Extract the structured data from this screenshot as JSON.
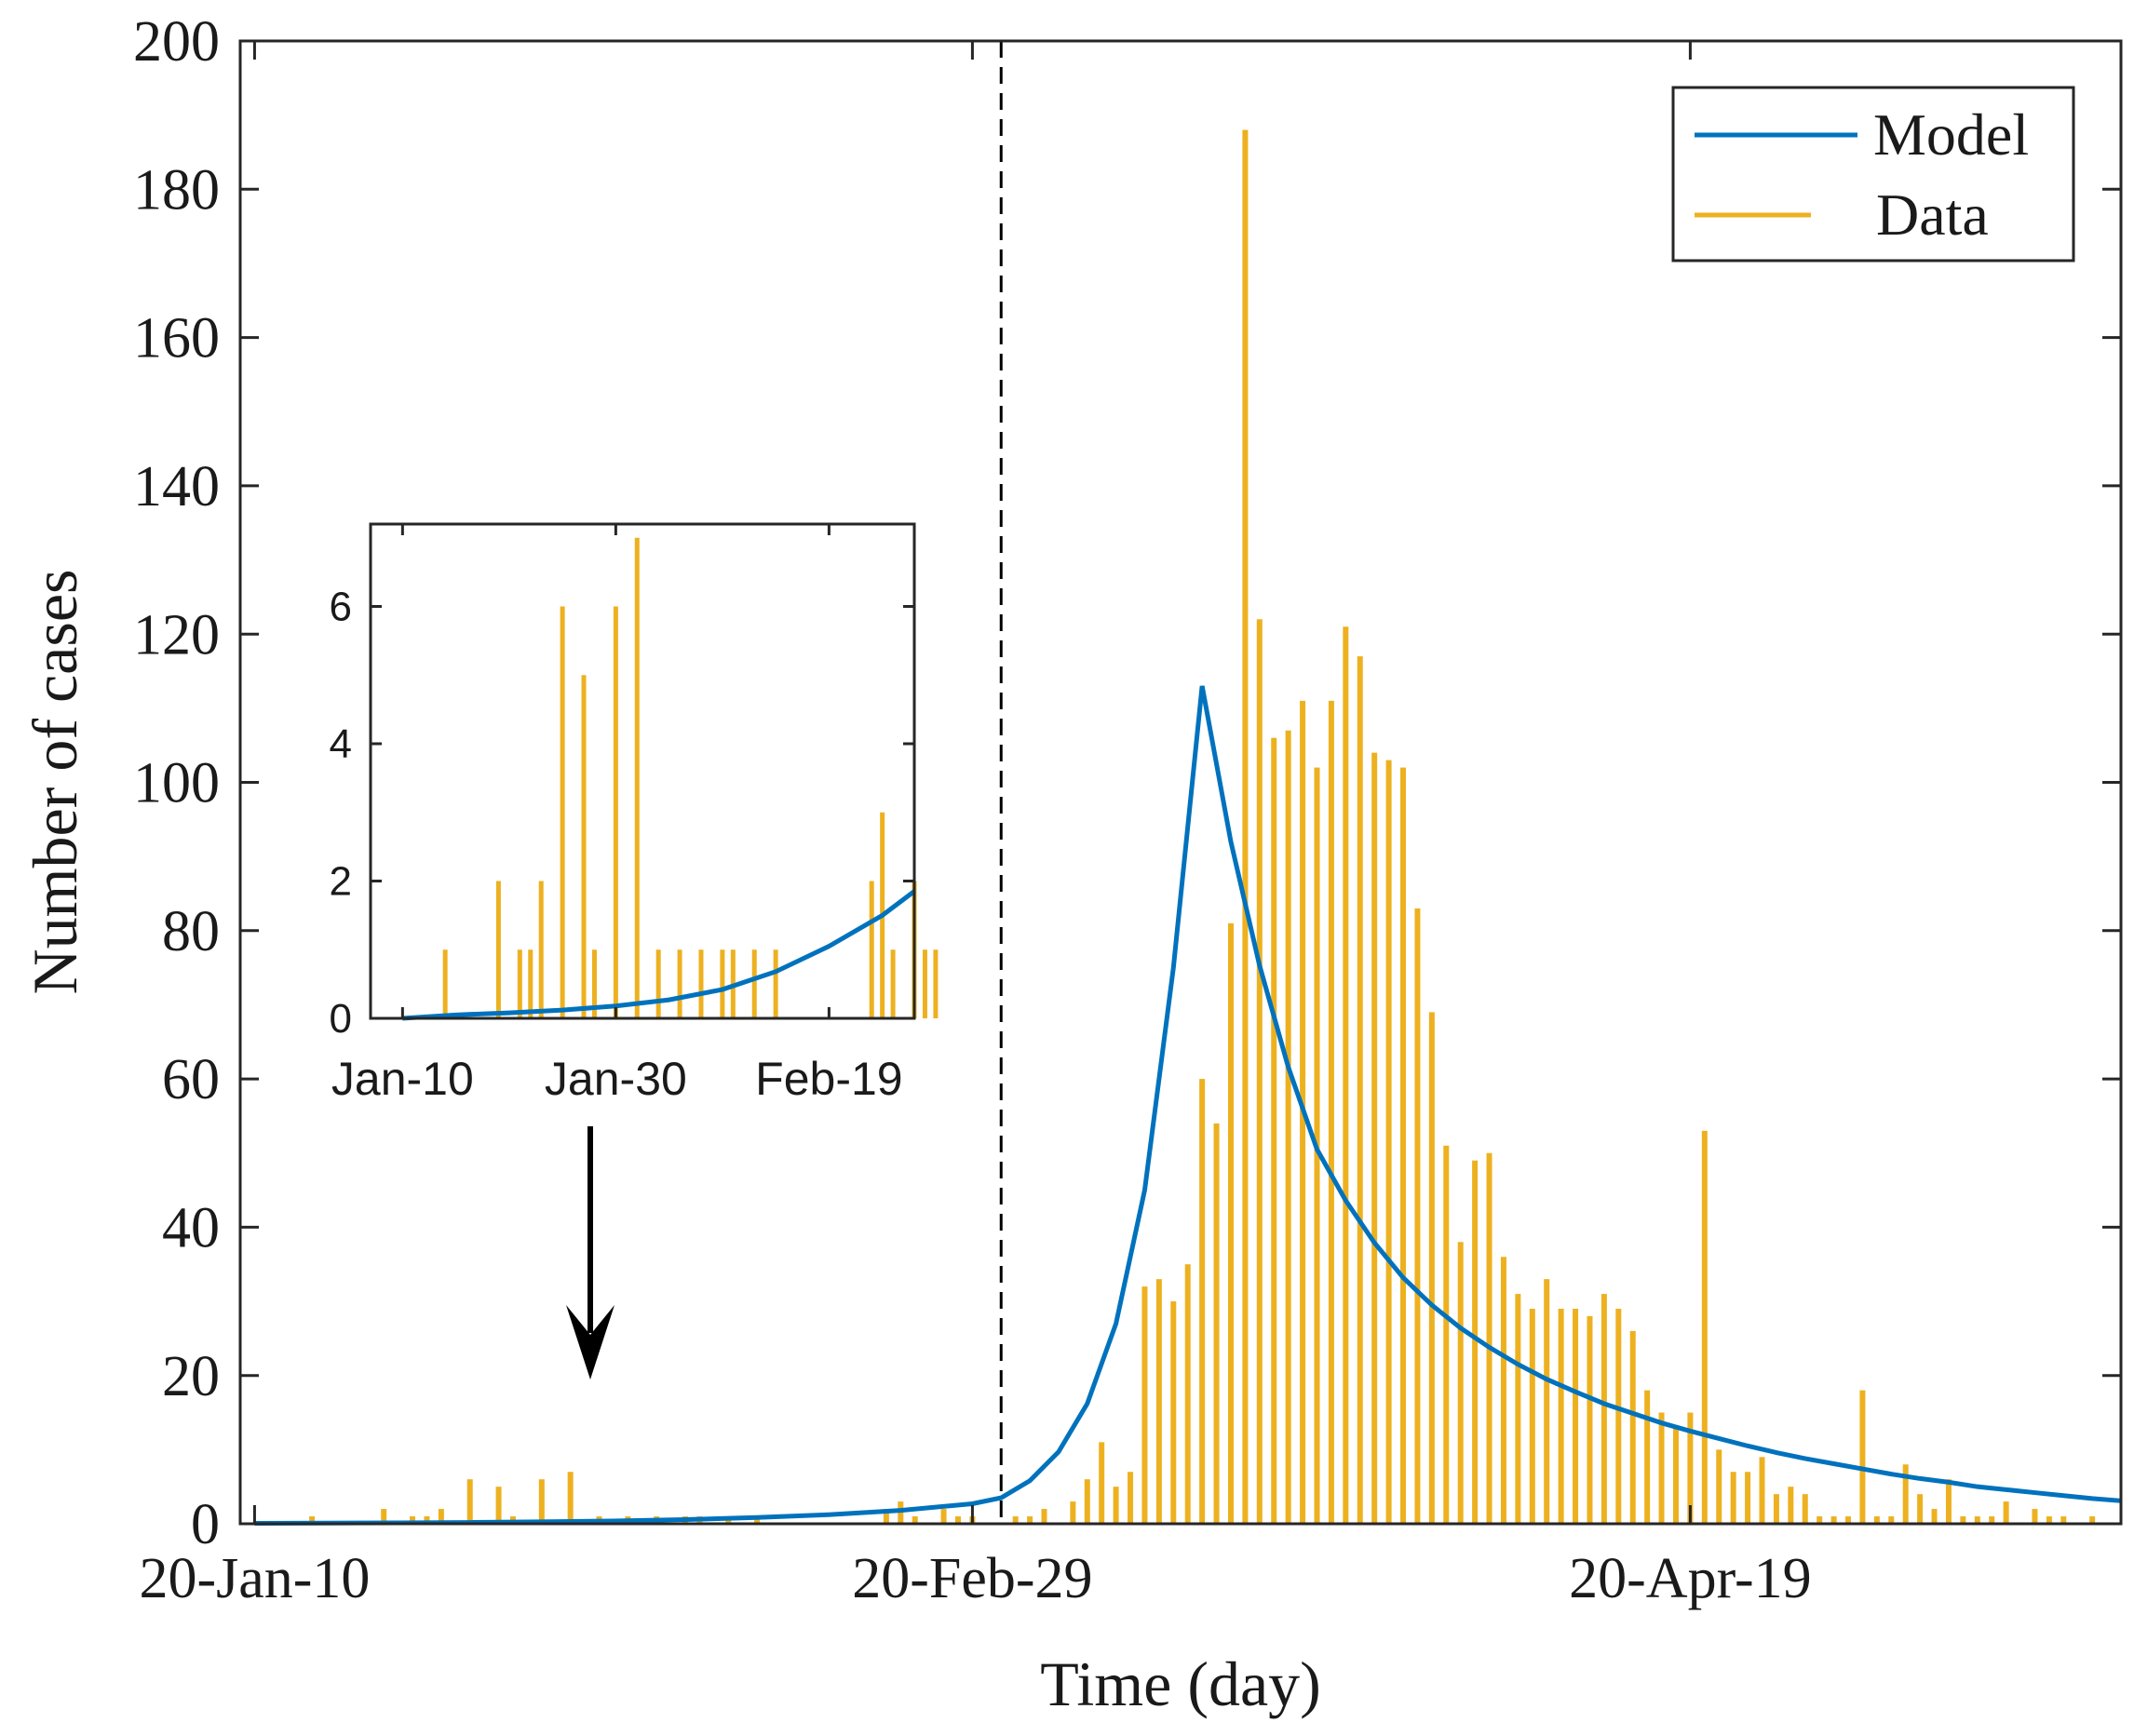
{
  "colors": {
    "model": "#0072BD",
    "data": "#EDB120",
    "axis": "#262626",
    "arrow": "#000000"
  },
  "chart_data": [
    {
      "name": "main",
      "type": "bar+line",
      "title": "",
      "xlabel": "Time (day)",
      "ylabel": "Number of cases",
      "start_date": "2020-01-10",
      "xlim": [
        -1,
        130
      ],
      "ylim": [
        0,
        200
      ],
      "y_ticks": [
        0,
        20,
        40,
        60,
        80,
        100,
        120,
        140,
        160,
        180,
        200
      ],
      "x_ticks": [
        {
          "day": 0,
          "label": "20-Jan-10"
        },
        {
          "day": 50,
          "label": "20-Feb-29"
        },
        {
          "day": 100,
          "label": "20-Apr-19"
        }
      ],
      "vline_day": 52,
      "legend": {
        "location": "top-right",
        "entries": [
          {
            "series": "model",
            "label": "Model"
          },
          {
            "series": "data",
            "label": "Data"
          }
        ]
      },
      "series": [
        {
          "name": "Data",
          "style": "bar",
          "days": [
            4,
            9,
            11,
            12,
            13,
            15,
            17,
            18,
            20,
            22,
            24,
            26,
            28,
            30,
            31,
            33,
            35,
            44,
            45,
            46,
            48,
            49,
            50,
            53,
            54,
            55,
            57,
            58,
            59,
            60,
            61,
            62,
            63,
            64,
            65,
            66,
            67,
            68,
            69,
            70,
            71,
            72,
            73,
            74,
            75,
            76,
            77,
            78,
            79,
            80,
            81,
            82,
            83,
            84,
            85,
            86,
            87,
            88,
            89,
            90,
            91,
            92,
            93,
            94,
            95,
            96,
            97,
            98,
            99,
            100,
            101,
            102,
            103,
            104,
            105,
            106,
            107,
            108,
            109,
            110,
            111,
            112,
            113,
            114,
            115,
            116,
            117,
            118,
            119,
            120,
            121,
            122,
            124,
            125,
            126,
            128
          ],
          "values": [
            1,
            2,
            1,
            1,
            2,
            6,
            5,
            1,
            6,
            7,
            1,
            1,
            1,
            1,
            1,
            1,
            1,
            2,
            3,
            1,
            2,
            1,
            1,
            1,
            1,
            2,
            3,
            6,
            11,
            5,
            7,
            32,
            33,
            30,
            35,
            60,
            54,
            81,
            188,
            122,
            106,
            107,
            111,
            102,
            111,
            121,
            117,
            104,
            103,
            102,
            83,
            69,
            51,
            38,
            49,
            50,
            36,
            31,
            29,
            33,
            29,
            29,
            28,
            31,
            29,
            26,
            18,
            15,
            13,
            15,
            53,
            10,
            7,
            7,
            9,
            4,
            5,
            4,
            1,
            1,
            1,
            18,
            1,
            1,
            8,
            4,
            2,
            6,
            1,
            1,
            1,
            3,
            2,
            1,
            1,
            1
          ]
        },
        {
          "name": "Model",
          "style": "line",
          "points": [
            [
              0,
              0.07
            ],
            [
              5,
              0.09
            ],
            [
              10,
              0.12
            ],
            [
              15,
              0.18
            ],
            [
              20,
              0.27
            ],
            [
              25,
              0.38
            ],
            [
              30,
              0.56
            ],
            [
              35,
              0.84
            ],
            [
              40,
              1.23
            ],
            [
              45,
              1.8
            ],
            [
              50,
              2.7
            ],
            [
              52,
              3.5
            ],
            [
              54,
              5.8
            ],
            [
              56,
              9.7
            ],
            [
              58,
              16.2
            ],
            [
              60,
              27
            ],
            [
              62,
              45
            ],
            [
              64,
              75
            ],
            [
              66,
              113
            ],
            [
              68,
              92
            ],
            [
              70,
              75.3
            ],
            [
              72,
              61.6
            ],
            [
              74,
              50.5
            ],
            [
              76,
              43.6
            ],
            [
              78,
              37.9
            ],
            [
              80,
              33.2
            ],
            [
              82,
              29.5
            ],
            [
              84,
              26.4
            ],
            [
              86,
              23.8
            ],
            [
              88,
              21.5
            ],
            [
              90,
              19.5
            ],
            [
              92,
              17.8
            ],
            [
              94,
              16.2
            ],
            [
              96,
              14.9
            ],
            [
              98,
              13.6
            ],
            [
              100,
              12.5
            ],
            [
              102,
              11.5
            ],
            [
              104,
              10.5
            ],
            [
              106,
              9.6
            ],
            [
              108,
              8.8
            ],
            [
              110,
              8.1
            ],
            [
              112,
              7.4
            ],
            [
              114,
              6.7
            ],
            [
              116,
              6.1
            ],
            [
              118,
              5.6
            ],
            [
              120,
              5.0
            ],
            [
              122,
              4.6
            ],
            [
              124,
              4.2
            ],
            [
              126,
              3.8
            ],
            [
              128,
              3.4
            ],
            [
              130,
              3.1
            ]
          ]
        }
      ]
    },
    {
      "name": "inset",
      "type": "bar+line",
      "title": "",
      "xlabel": "",
      "ylabel": "",
      "xlim": [
        -3,
        48
      ],
      "ylim": [
        0,
        7.2
      ],
      "y_ticks": [
        0,
        2,
        4,
        6
      ],
      "x_ticks": [
        {
          "day": 0,
          "label": "Jan-10"
        },
        {
          "day": 20,
          "label": "Jan-30"
        },
        {
          "day": 40,
          "label": "Feb-19"
        }
      ],
      "series": [
        {
          "name": "Data",
          "style": "bar",
          "days": [
            4,
            9,
            11,
            12,
            13,
            15,
            17,
            18,
            20,
            22,
            24,
            26,
            28,
            30,
            31,
            33,
            35,
            44,
            45,
            46,
            48,
            49,
            50
          ],
          "values": [
            1,
            2,
            1,
            1,
            2,
            6,
            5,
            1,
            6,
            7,
            1,
            1,
            1,
            1,
            1,
            1,
            1,
            2,
            3,
            1,
            2,
            1,
            1
          ]
        },
        {
          "name": "Model",
          "style": "line",
          "points": [
            [
              0,
              0.0
            ],
            [
              5,
              0.05
            ],
            [
              10,
              0.08
            ],
            [
              15,
              0.12
            ],
            [
              20,
              0.18
            ],
            [
              25,
              0.27
            ],
            [
              30,
              0.42
            ],
            [
              35,
              0.68
            ],
            [
              40,
              1.05
            ],
            [
              45,
              1.5
            ],
            [
              48,
              1.85
            ]
          ]
        }
      ]
    }
  ]
}
